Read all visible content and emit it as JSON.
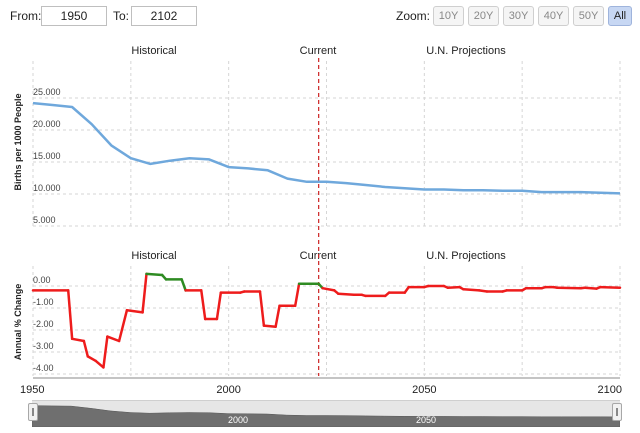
{
  "toolbar": {
    "from_label": "From:",
    "from_value": "1950",
    "to_label": "To:",
    "to_value": "2102",
    "zoom_label": "Zoom:",
    "zoom_options": [
      "10Y",
      "20Y",
      "30Y",
      "40Y",
      "50Y",
      "All"
    ],
    "zoom_selected": "All"
  },
  "sections": {
    "historical": "Historical",
    "current": "Current",
    "projections": "U.N. Projections"
  },
  "colors": {
    "birth_line": "#6fa8dc",
    "change_negative": "#ee1c1c",
    "change_positive": "#2e8b22",
    "current_marker": "#cc2222"
  },
  "navigator": {
    "labels": [
      "2000",
      "2050"
    ]
  },
  "chart_data": [
    {
      "type": "line",
      "ylabel": "Births per 1000 People",
      "ylim": [
        5,
        27
      ],
      "yticks": [
        "25.000",
        "20.000",
        "15.000",
        "10.000",
        "5.000"
      ],
      "ytick_values": [
        25,
        20,
        15,
        10,
        5
      ],
      "x": [
        1950,
        1955,
        1960,
        1965,
        1970,
        1975,
        1980,
        1985,
        1990,
        1995,
        2000,
        2005,
        2010,
        2015,
        2020,
        2025,
        2030,
        2035,
        2040,
        2045,
        2050,
        2055,
        2060,
        2065,
        2070,
        2075,
        2080,
        2085,
        2090,
        2095,
        2100
      ],
      "series": [
        {
          "values": [
            24.2,
            23.9,
            23.6,
            20.9,
            17.6,
            15.6,
            14.7,
            15.2,
            15.6,
            15.4,
            14.2,
            14.0,
            13.7,
            12.4,
            11.9,
            11.9,
            11.7,
            11.4,
            11.1,
            10.9,
            10.7,
            10.7,
            10.6,
            10.6,
            10.5,
            10.5,
            10.3,
            10.3,
            10.3,
            10.2,
            10.1
          ]
        }
      ],
      "grid": true
    },
    {
      "type": "line",
      "ylabel": "Annual % Change",
      "ylim": [
        -4,
        1
      ],
      "yticks": [
        "0.00",
        "-1.00",
        "-2.00",
        "-3.00",
        "-4.00"
      ],
      "ytick_values": [
        0,
        -1,
        -2,
        -3,
        -4
      ],
      "xticks": [
        1950,
        2000,
        2050,
        2100
      ],
      "steps": [
        [
          1950,
          -0.2
        ],
        [
          1959,
          -0.2
        ],
        [
          1960,
          -2.4
        ],
        [
          1963,
          -2.5
        ],
        [
          1964,
          -3.2
        ],
        [
          1966,
          -3.4
        ],
        [
          1968,
          -3.7
        ],
        [
          1969,
          -2.3
        ],
        [
          1972,
          -2.5
        ],
        [
          1974,
          -1.1
        ],
        [
          1978,
          -1.2
        ],
        [
          1979,
          0.55
        ],
        [
          1983,
          0.5
        ],
        [
          1984,
          0.3
        ],
        [
          1988,
          0.3
        ],
        [
          1989,
          -0.2
        ],
        [
          1993,
          -0.2
        ],
        [
          1994,
          -1.5
        ],
        [
          1997,
          -1.5
        ],
        [
          1998,
          -0.3
        ],
        [
          2003,
          -0.3
        ],
        [
          2004,
          -0.25
        ],
        [
          2008,
          -0.25
        ],
        [
          2009,
          -1.8
        ],
        [
          2012,
          -1.85
        ],
        [
          2013,
          -0.9
        ],
        [
          2017,
          -0.9
        ],
        [
          2018,
          0.1
        ],
        [
          2023,
          0.1
        ],
        [
          2024,
          -0.1
        ],
        [
          2027,
          -0.2
        ],
        [
          2028,
          -0.35
        ],
        [
          2032,
          -0.4
        ],
        [
          2034,
          -0.4
        ],
        [
          2035,
          -0.45
        ],
        [
          2040,
          -0.45
        ],
        [
          2041,
          -0.3
        ],
        [
          2045,
          -0.3
        ],
        [
          2046,
          -0.05
        ],
        [
          2050,
          -0.05
        ],
        [
          2051,
          0.0
        ],
        [
          2055,
          0.0
        ],
        [
          2056,
          -0.08
        ],
        [
          2059,
          -0.05
        ],
        [
          2060,
          -0.15
        ],
        [
          2064,
          -0.2
        ],
        [
          2066,
          -0.25
        ],
        [
          2070,
          -0.25
        ],
        [
          2071,
          -0.2
        ],
        [
          2075,
          -0.2
        ],
        [
          2076,
          -0.1
        ],
        [
          2080,
          -0.1
        ],
        [
          2081,
          -0.05
        ],
        [
          2083,
          -0.05
        ],
        [
          2084,
          -0.08
        ],
        [
          2090,
          -0.1
        ],
        [
          2091,
          -0.08
        ],
        [
          2094,
          -0.12
        ],
        [
          2095,
          -0.05
        ],
        [
          2100,
          -0.08
        ]
      ],
      "grid": true
    }
  ]
}
